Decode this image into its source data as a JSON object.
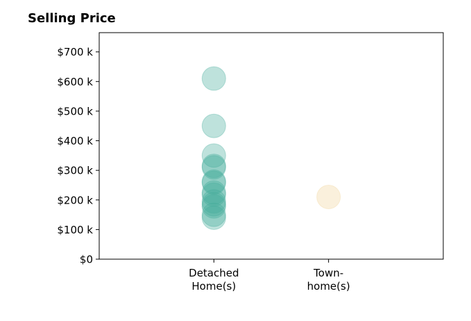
{
  "chart_data": {
    "type": "scatter",
    "title": "Selling Price",
    "xlabel": "",
    "ylabel": "",
    "categories": [
      [
        "Detached",
        "Home(s)"
      ],
      [
        "Town-",
        "home(s)"
      ]
    ],
    "y_tick_labels": [
      "$0",
      "$100 k",
      "$200 k",
      "$300 k",
      "$400 k",
      "$500 k",
      "$600 k",
      "$700 k"
    ],
    "ylim": [
      0,
      765000
    ],
    "xlim": [
      -1,
      2
    ],
    "grid": false,
    "legend": "none",
    "series": [
      {
        "category_index": 0,
        "color": "#45ab9c",
        "values": [
          610000,
          450000,
          350000,
          315000,
          310000,
          262000,
          258000,
          225000,
          218000,
          195000,
          185000,
          178000,
          150000,
          140000
        ]
      },
      {
        "category_index": 1,
        "color": "#f2d49c",
        "values": [
          210000
        ]
      }
    ]
  }
}
